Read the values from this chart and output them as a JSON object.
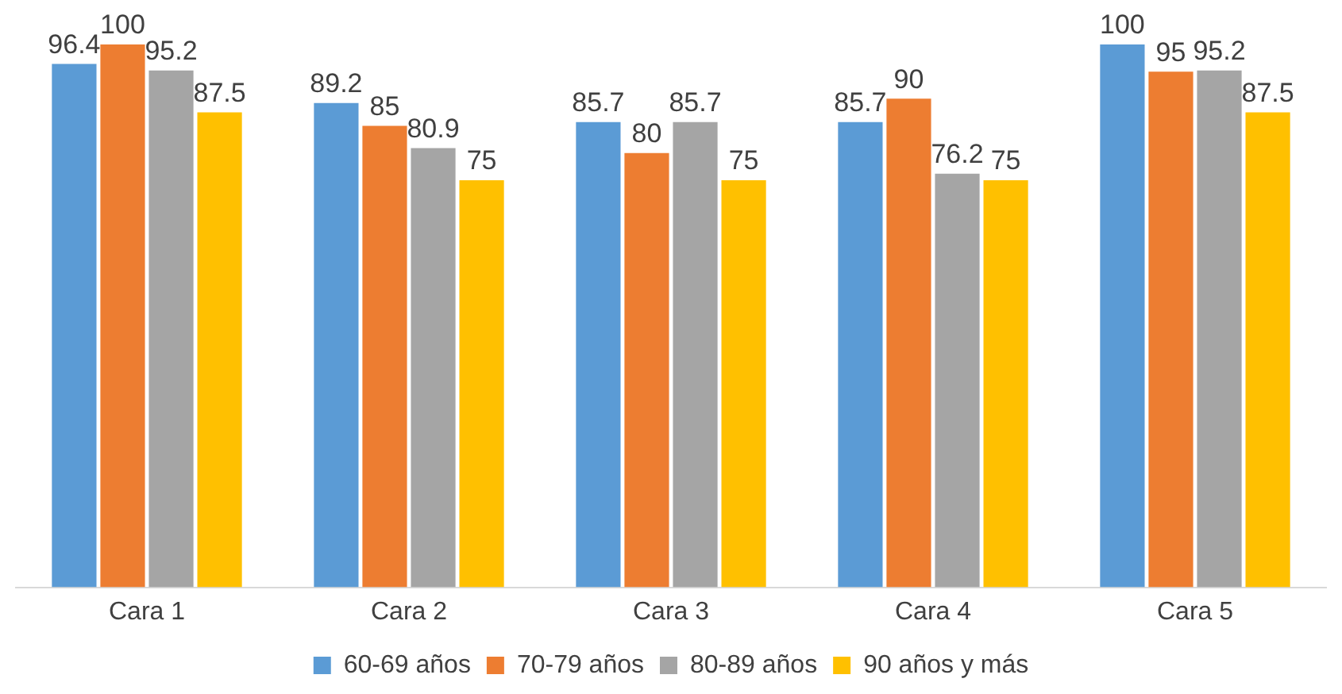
{
  "chart_data": {
    "type": "bar",
    "categories": [
      "Cara 1",
      "Cara 2",
      "Cara 3",
      "Cara 4",
      "Cara 5"
    ],
    "series": [
      {
        "name": "60-69 años",
        "color": "#5b9bd5",
        "values": [
          96.4,
          89.2,
          85.7,
          85.7,
          100
        ]
      },
      {
        "name": "70-79 años",
        "color": "#ed7d31",
        "values": [
          100,
          85,
          80,
          90,
          95
        ]
      },
      {
        "name": "80-89 años",
        "color": "#a5a5a5",
        "values": [
          95.2,
          80.9,
          85.7,
          76.2,
          95.2
        ]
      },
      {
        "name": "90 años y más",
        "color": "#ffc000",
        "values": [
          87.5,
          75,
          75,
          75,
          87.5
        ]
      }
    ],
    "data_labels": true,
    "legend": "bottom",
    "grid": false
  }
}
